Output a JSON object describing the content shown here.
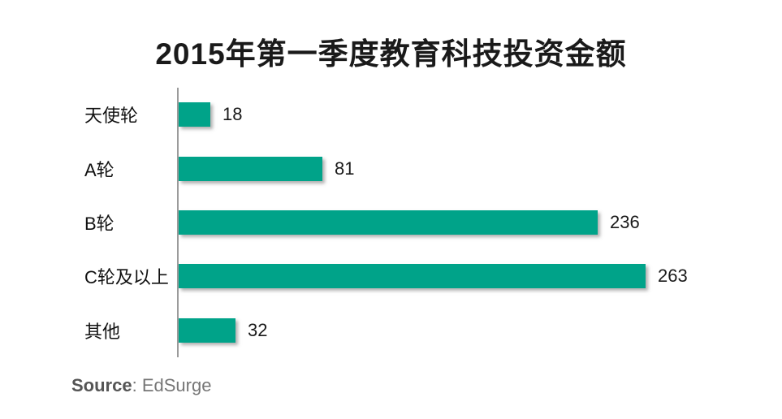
{
  "title": "2015年第一季度教育科技投资金额",
  "source": {
    "label": "Source",
    "separator": ": ",
    "value": "EdSurge"
  },
  "colors": {
    "bar": "#00a389",
    "axis": "#9b9b9b",
    "title_text": "#1a1a1a",
    "source_label": "#555555",
    "source_value": "#767676"
  },
  "chart_data": {
    "type": "bar",
    "orientation": "horizontal",
    "title": "2015年第一季度教育科技投资金额",
    "categories": [
      "天使轮",
      "A轮",
      "B轮",
      "C轮及以上",
      "其他"
    ],
    "values": [
      18,
      81,
      236,
      263,
      32
    ],
    "xlabel": "",
    "ylabel": "",
    "xlim": [
      0,
      270
    ],
    "grid": false,
    "legend": false,
    "value_labels": true,
    "source": "EdSurge"
  }
}
